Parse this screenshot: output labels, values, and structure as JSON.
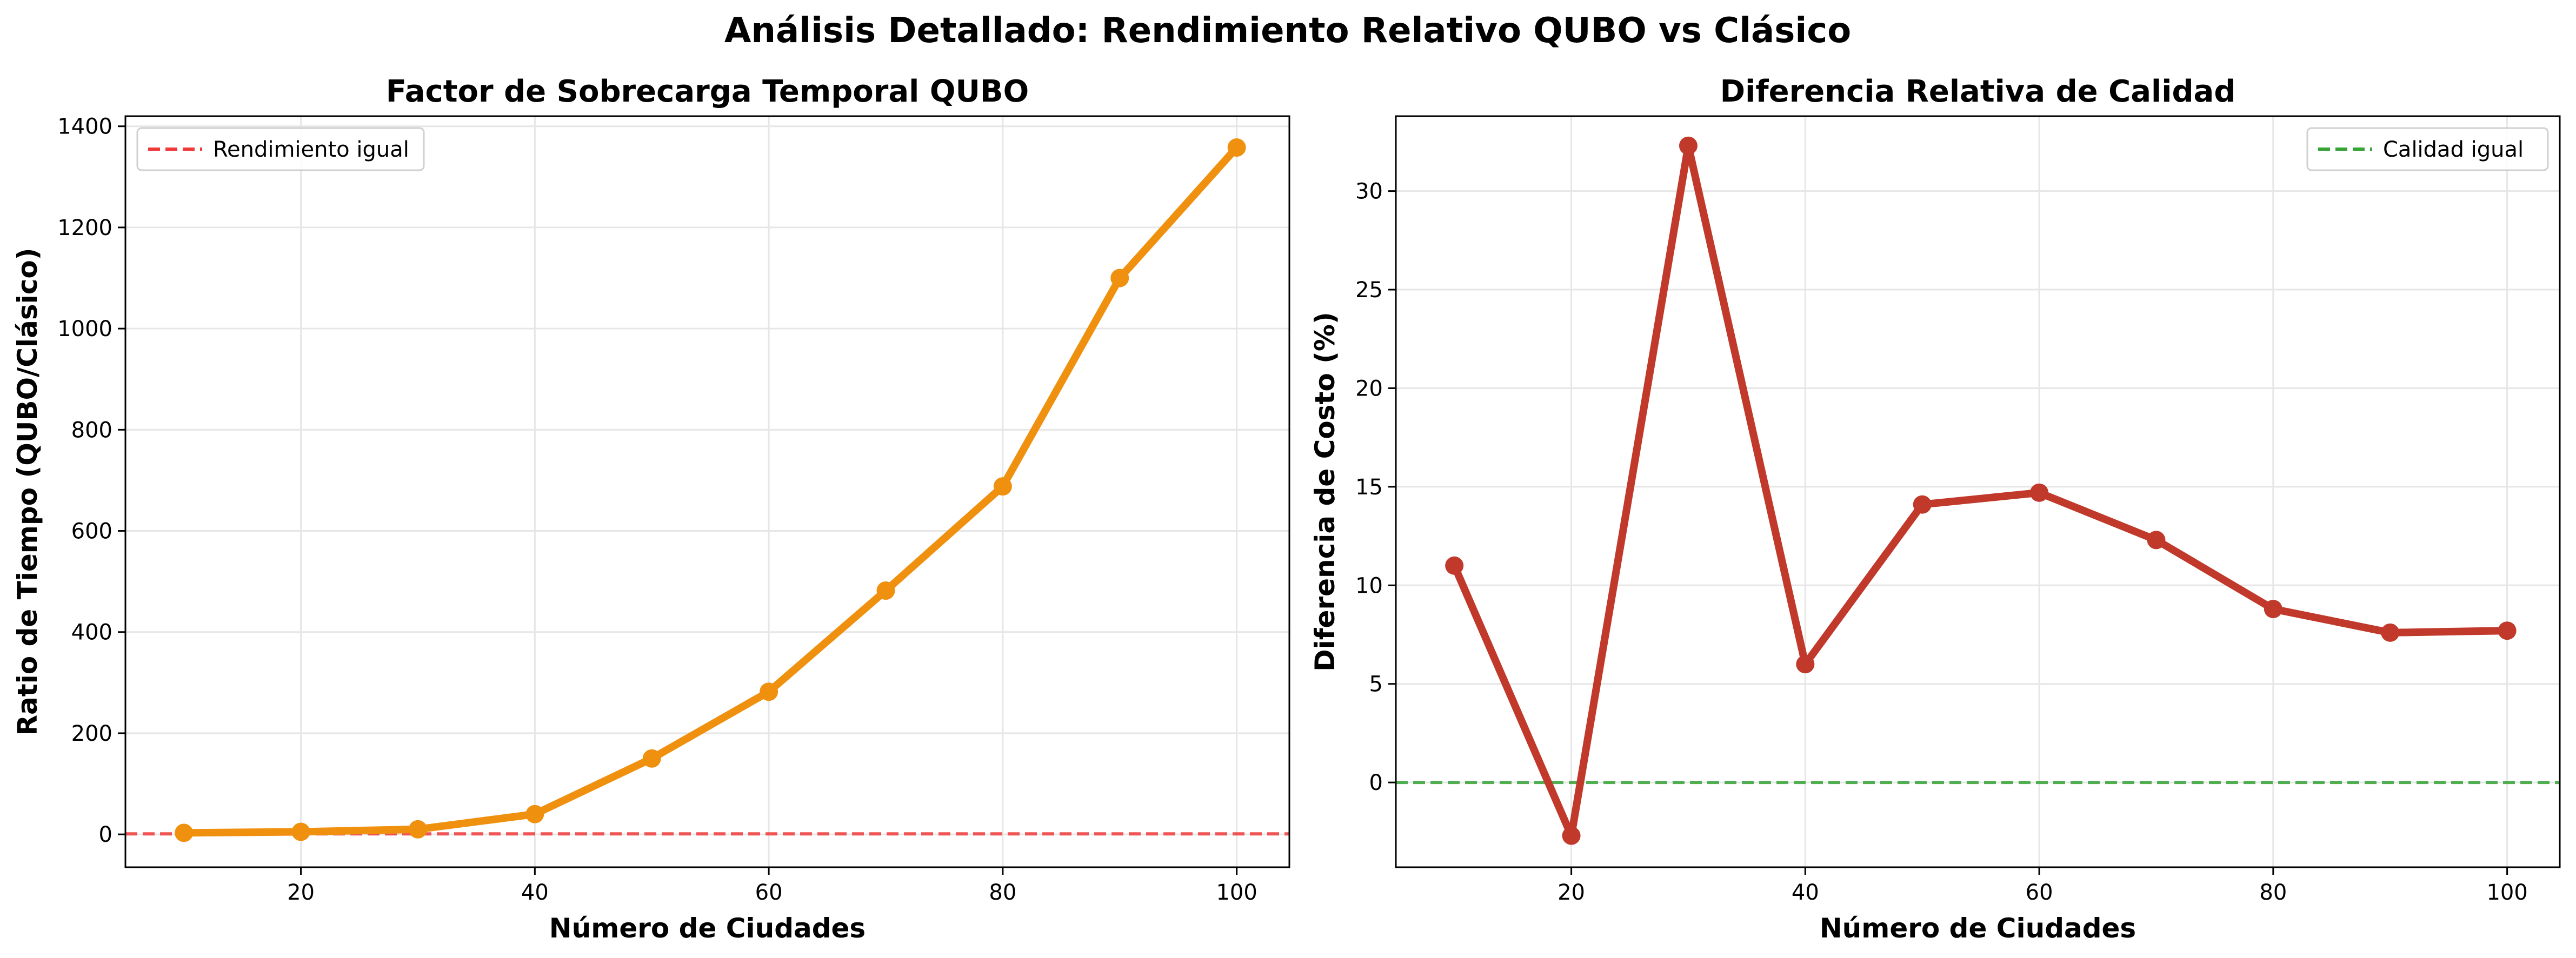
{
  "suptitle": "Análisis Detallado: Rendimiento Relativo QUBO vs Clásico",
  "colors": {
    "line_left": "#F0900F",
    "line_right": "#C0392B",
    "ref_left": "#F03A3A",
    "ref_right": "#36A336",
    "grid": "#E6E6E6",
    "axis": "#000000"
  },
  "chart_data": [
    {
      "type": "line",
      "title": "Factor de Sobrecarga Temporal QUBO",
      "xlabel": "Número de Ciudades",
      "ylabel": "Ratio de Tiempo (QUBO/Clásico)",
      "xlim": [
        5,
        104.5
      ],
      "ylim": [
        -65,
        1420
      ],
      "xticks": [
        20,
        40,
        60,
        80,
        100
      ],
      "yticks": [
        0,
        200,
        400,
        600,
        800,
        1000,
        1200,
        1400
      ],
      "grid": true,
      "legend_position": "top-left",
      "x": [
        10,
        20,
        30,
        40,
        50,
        60,
        70,
        80,
        90,
        100
      ],
      "series": [
        {
          "values": [
            3,
            5,
            10,
            40,
            150,
            282,
            482,
            688,
            1100,
            1358
          ]
        }
      ],
      "reference_line": {
        "y": 1,
        "label": "Rendimiento igual"
      }
    },
    {
      "type": "line",
      "title": "Diferencia Relativa de Calidad",
      "xlabel": "Número de Ciudades",
      "ylabel": "Diferencia de Costo (%)",
      "xlim": [
        5,
        104.5
      ],
      "ylim": [
        -4.3,
        33.8
      ],
      "xticks": [
        20,
        40,
        60,
        80,
        100
      ],
      "yticks": [
        0,
        5,
        10,
        15,
        20,
        25,
        30
      ],
      "grid": true,
      "legend_position": "top-right",
      "x": [
        10,
        20,
        30,
        40,
        50,
        60,
        70,
        80,
        90,
        100
      ],
      "series": [
        {
          "values": [
            11.0,
            -2.7,
            32.3,
            6.0,
            14.1,
            14.7,
            12.3,
            8.8,
            7.6,
            7.7
          ]
        }
      ],
      "reference_line": {
        "y": 0,
        "label": "Calidad igual"
      }
    }
  ]
}
